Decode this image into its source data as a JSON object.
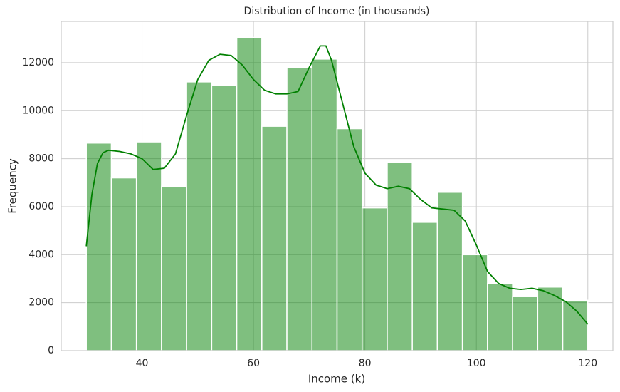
{
  "chart_data": {
    "type": "histogram",
    "title": "Distribution of Income (in thousands)",
    "x_label": "Income (k)",
    "y_label": "Frequency",
    "bins": [
      30,
      34.5,
      39,
      43.5,
      48,
      52.5,
      57,
      61.5,
      66,
      70.5,
      75,
      79.5,
      84,
      88.5,
      93,
      97.5,
      102,
      106.5,
      111,
      115.5,
      120
    ],
    "values": [
      8650,
      7200,
      8700,
      6850,
      11200,
      11050,
      13050,
      9350,
      11800,
      12150,
      9250,
      5950,
      7850,
      5350,
      6600,
      4000,
      2800,
      2250,
      2650,
      2100
    ],
    "color": "#008000",
    "kde": {
      "x": [
        30,
        31,
        32,
        33,
        34,
        36,
        38,
        40,
        42,
        44,
        46,
        48,
        50,
        52,
        54,
        56,
        58,
        60,
        62,
        64,
        66,
        68,
        70,
        72,
        73,
        74,
        76,
        78,
        80,
        82,
        84,
        86,
        88,
        90,
        92,
        94,
        96,
        98,
        100,
        102,
        104,
        106,
        108,
        110,
        112,
        114,
        116,
        118,
        120
      ],
      "values": [
        4350,
        6500,
        7800,
        8250,
        8350,
        8300,
        8200,
        8000,
        7550,
        7600,
        8200,
        9800,
        11300,
        12100,
        12350,
        12300,
        11900,
        11300,
        10850,
        10700,
        10700,
        10800,
        11800,
        12700,
        12700,
        12100,
        10300,
        8500,
        7400,
        6900,
        6750,
        6850,
        6750,
        6300,
        5950,
        5900,
        5850,
        5400,
        4400,
        3300,
        2800,
        2600,
        2550,
        2600,
        2500,
        2300,
        2050,
        1650,
        1100
      ],
      "color": "#008000"
    },
    "xlim": [
      25.5,
      124.5
    ],
    "ylim": [
      0,
      13720
    ],
    "xticks": [
      40,
      60,
      80,
      100,
      120
    ],
    "yticks": [
      0,
      2000,
      4000,
      6000,
      8000,
      10000,
      12000
    ],
    "grid": true
  }
}
